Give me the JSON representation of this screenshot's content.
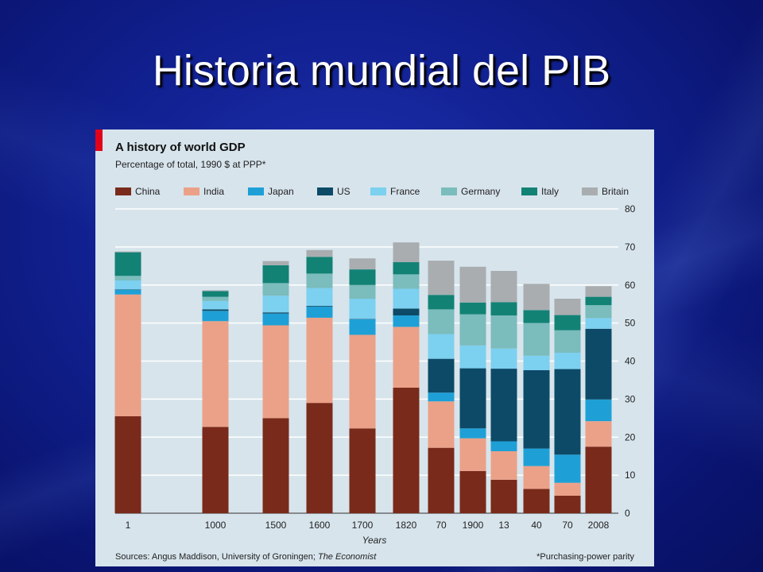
{
  "slide": {
    "title": "Historia mundial del PIB"
  },
  "chart_data": {
    "type": "bar",
    "stacked": true,
    "title": "A history of world GDP",
    "subtitle": "Percentage of total, 1990 $ at PPP*",
    "xlabel": "Years",
    "ylabel": "",
    "ylim": [
      0,
      80
    ],
    "yticks": [
      0,
      10,
      20,
      30,
      40,
      50,
      60,
      70,
      80
    ],
    "grid": true,
    "y_axis_position": "right",
    "legend_position": "top",
    "categories": [
      "1",
      "1000",
      "1500",
      "1600",
      "1700",
      "1820",
      "70",
      "1900",
      "13",
      "40",
      "70",
      "2008"
    ],
    "series": [
      {
        "name": "China",
        "color": "#7a2a1a",
        "values": [
          25.5,
          22.7,
          25.0,
          29.0,
          22.3,
          33.0,
          17.2,
          11.1,
          8.8,
          6.4,
          4.6,
          17.5
        ]
      },
      {
        "name": "India",
        "color": "#eba188",
        "values": [
          32.0,
          27.8,
          24.4,
          22.4,
          24.6,
          16.0,
          12.2,
          8.6,
          7.5,
          6.0,
          3.4,
          6.7
        ]
      },
      {
        "name": "Japan",
        "color": "#1ea0d6",
        "values": [
          1.2,
          2.7,
          3.1,
          2.9,
          4.1,
          3.0,
          2.3,
          2.6,
          2.6,
          4.6,
          7.4,
          5.7
        ]
      },
      {
        "name": "US",
        "color": "#0d4a67",
        "values": [
          0.1,
          0.4,
          0.3,
          0.2,
          0.1,
          1.8,
          8.9,
          15.8,
          19.1,
          20.6,
          22.5,
          18.6
        ]
      },
      {
        "name": "France",
        "color": "#7cd0f0",
        "values": [
          2.4,
          2.2,
          4.4,
          4.7,
          5.3,
          5.2,
          6.5,
          6.0,
          5.3,
          3.8,
          4.3,
          2.8
        ]
      },
      {
        "name": "Germany",
        "color": "#7bbcbc",
        "values": [
          1.2,
          1.1,
          3.3,
          3.8,
          3.6,
          3.8,
          6.5,
          8.2,
          8.7,
          8.6,
          5.9,
          3.4
        ]
      },
      {
        "name": "Italy",
        "color": "#128275",
        "values": [
          6.2,
          1.5,
          4.7,
          4.4,
          4.1,
          3.2,
          3.8,
          3.1,
          3.5,
          3.4,
          4.0,
          2.2
        ]
      },
      {
        "name": "Britain",
        "color": "#a9adb0",
        "values": [
          0.2,
          0.2,
          1.1,
          1.8,
          2.9,
          5.2,
          9.0,
          9.4,
          8.2,
          6.9,
          4.3,
          2.8
        ]
      }
    ],
    "source_prefix": "Sources: Angus Maddison, University of Groningen; ",
    "source_publication": "The Economist",
    "footnote": "*Purchasing-power parity"
  }
}
